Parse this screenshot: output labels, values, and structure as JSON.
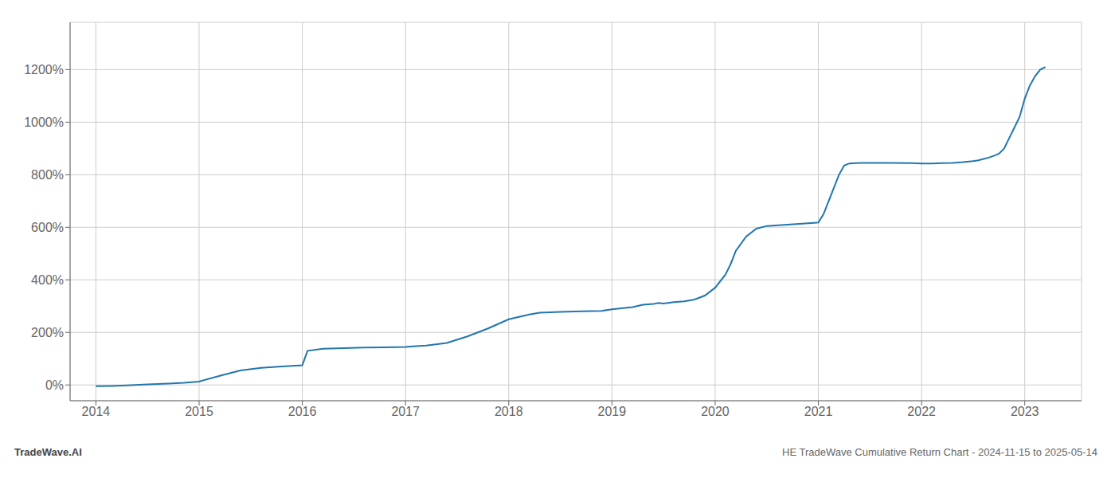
{
  "chart_data": {
    "type": "line",
    "annotations": [
      "TradeWave.AI",
      "HE TradeWave Cumulative Return Chart - 2024-11-15 to 2025-05-14"
    ],
    "color": "#2176ae",
    "grid": true,
    "x": [
      2014.0,
      2014.15,
      2014.3,
      2014.5,
      2014.7,
      2014.85,
      2015.0,
      2015.2,
      2015.4,
      2015.6,
      2015.8,
      2016.0,
      2016.05,
      2016.2,
      2016.4,
      2016.6,
      2016.8,
      2017.0,
      2017.1,
      2017.2,
      2017.4,
      2017.6,
      2017.8,
      2018.0,
      2018.2,
      2018.3,
      2018.5,
      2018.7,
      2018.9,
      2019.0,
      2019.2,
      2019.3,
      2019.4,
      2019.45,
      2019.5,
      2019.6,
      2019.7,
      2019.8,
      2019.9,
      2020.0,
      2020.1,
      2020.15,
      2020.2,
      2020.3,
      2020.4,
      2020.5,
      2020.7,
      2020.9,
      2021.0,
      2021.05,
      2021.1,
      2021.15,
      2021.2,
      2021.25,
      2021.3,
      2021.4,
      2021.5,
      2021.7,
      2021.9,
      2022.0,
      2022.1,
      2022.2,
      2022.3,
      2022.4,
      2022.5,
      2022.55,
      2022.6,
      2022.65,
      2022.7,
      2022.75,
      2022.8,
      2022.85,
      2022.9,
      2022.95,
      2023.0,
      2023.05,
      2023.1,
      2023.15,
      2023.2
    ],
    "values": [
      -5,
      -4,
      -2,
      2,
      5,
      8,
      13,
      35,
      55,
      65,
      70,
      75,
      130,
      138,
      140,
      142,
      143,
      145,
      148,
      150,
      160,
      185,
      215,
      250,
      268,
      275,
      278,
      280,
      282,
      288,
      296,
      305,
      308,
      312,
      310,
      315,
      318,
      325,
      340,
      370,
      420,
      460,
      510,
      565,
      595,
      605,
      610,
      615,
      618,
      650,
      700,
      750,
      800,
      835,
      843,
      845,
      845,
      845,
      844,
      843,
      843,
      844,
      845,
      848,
      852,
      855,
      860,
      865,
      872,
      880,
      900,
      940,
      980,
      1020,
      1090,
      1140,
      1175,
      1200,
      1210
    ],
    "xlim": [
      2013.75,
      2023.55
    ],
    "xticks": [
      2014,
      2015,
      2016,
      2017,
      2018,
      2019,
      2020,
      2021,
      2022,
      2023
    ],
    "ylim": [
      -60,
      1380
    ],
    "yticks": [
      {
        "value": 0,
        "label": "0%"
      },
      {
        "value": 200,
        "label": "200%"
      },
      {
        "value": 400,
        "label": "400%"
      },
      {
        "value": 600,
        "label": "600%"
      },
      {
        "value": 800,
        "label": "800%"
      },
      {
        "value": 1000,
        "label": "1000%"
      },
      {
        "value": 1200,
        "label": "1200%"
      }
    ]
  }
}
